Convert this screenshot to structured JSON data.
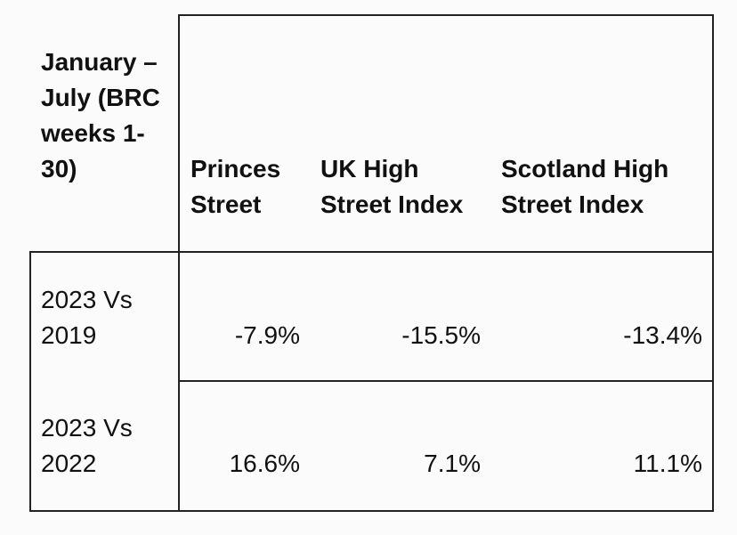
{
  "table": {
    "header": [
      "January – July (BRC weeks 1-30)",
      "Princes Street",
      "UK High Street Index",
      "Scotland High Street Index"
    ],
    "rows": [
      [
        "2023 Vs 2019",
        "-7.9%",
        "-15.5%",
        "-13.4%"
      ],
      [
        "2023 Vs 2022",
        "16.6%",
        "7.1%",
        "11.1%"
      ]
    ]
  }
}
